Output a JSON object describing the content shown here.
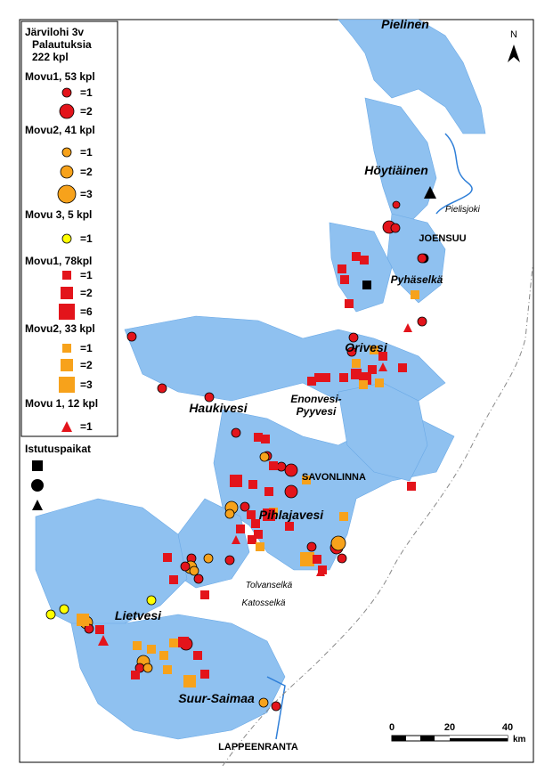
{
  "legend": {
    "title_lines": [
      "Järvilohi 3v",
      "Palautuksia",
      "222 kpl"
    ],
    "groups": [
      {
        "heading": "Movu1, 53 kpl",
        "items": [
          "=1",
          "=2"
        ]
      },
      {
        "heading": "Movu2, 41 kpl",
        "items": [
          "=1",
          "=2",
          "=3"
        ]
      },
      {
        "heading": "Movu 3, 5 kpl",
        "items": [
          "=1"
        ]
      },
      {
        "heading": "Movu1, 78kpl",
        "items": [
          "=1",
          "=2",
          "=6"
        ]
      },
      {
        "heading": "Movu2, 33 kpl",
        "items": [
          "=1",
          "=2",
          "=3"
        ]
      },
      {
        "heading": "Movu 1, 12 kpl",
        "items": [
          "=1"
        ]
      }
    ],
    "stocking_title": "Istutuspaikat"
  },
  "places": [
    "Pielinen",
    "Höytiäinen",
    "Pielisjoki",
    "JOENSUU",
    "Pyhäselkä",
    "Orivesi",
    "Enonvesi-",
    "Pyyvesi",
    "Haukivesi",
    "SAVONLINNA",
    "Pihlajavesi",
    "Tolvanselkä",
    "Katosselkä",
    "Lietvesi",
    "Suur-Saimaa",
    "LAPPEENRANTA"
  ],
  "north": "N",
  "scale": {
    "labels": [
      "0",
      "20",
      "40"
    ],
    "unit": "km"
  }
}
